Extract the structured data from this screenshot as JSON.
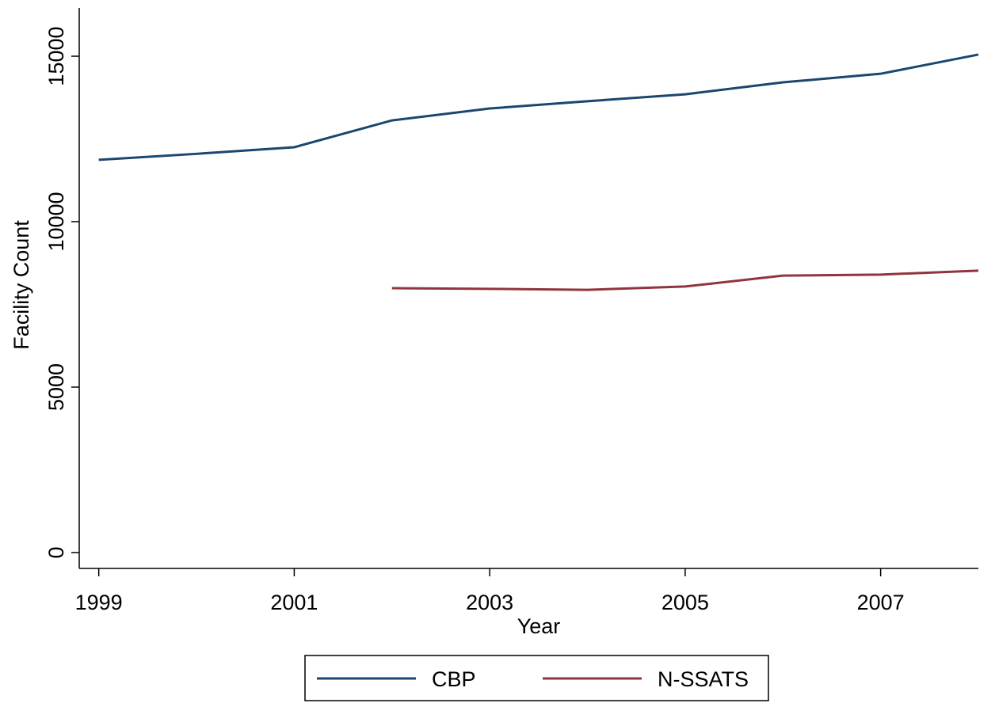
{
  "chart_data": {
    "type": "line",
    "x": [
      1999,
      2000,
      2001,
      2002,
      2003,
      2004,
      2005,
      2006,
      2007,
      2008
    ],
    "series": [
      {
        "name": "CBP",
        "color": "#1a476f",
        "values": [
          11870,
          12050,
          12250,
          13060,
          13420,
          13640,
          13850,
          14210,
          14470,
          15050
        ]
      },
      {
        "name": "N-SSATS",
        "color": "#90353b",
        "values": [
          null,
          null,
          null,
          7990,
          7970,
          7940,
          8040,
          8370,
          8400,
          8520
        ]
      }
    ],
    "xlabel": "Year",
    "ylabel": "Facility Count",
    "xlim": [
      1998.8,
      2008
    ],
    "xticks": [
      1999,
      2001,
      2003,
      2005,
      2007
    ],
    "ylim": [
      -480,
      16460
    ],
    "yticks": [
      0,
      5000,
      10000,
      15000
    ],
    "legend": "bottom"
  }
}
